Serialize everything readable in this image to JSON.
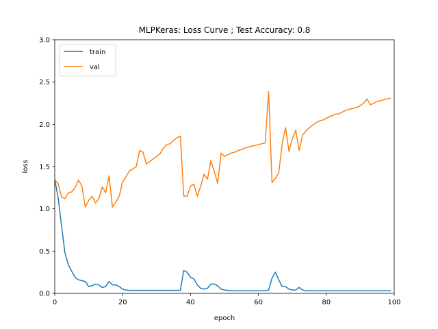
{
  "chart_data": {
    "type": "line",
    "title": "MLPKeras: Loss Curve ; Test Accuracy: 0.8",
    "xlabel": "epoch",
    "ylabel": "loss",
    "xlim": [
      0,
      100
    ],
    "ylim": [
      0.0,
      3.0
    ],
    "x_ticks": [
      "0",
      "20",
      "40",
      "60",
      "80",
      "100"
    ],
    "y_ticks": [
      "0.0",
      "0.5",
      "1.0",
      "1.5",
      "2.0",
      "2.5",
      "3.0"
    ],
    "grid": false,
    "legend_position": "top-left",
    "x": [
      0,
      1,
      2,
      3,
      4,
      5,
      6,
      7,
      8,
      9,
      10,
      11,
      12,
      13,
      14,
      15,
      16,
      17,
      18,
      19,
      20,
      21,
      22,
      23,
      24,
      25,
      26,
      27,
      28,
      29,
      30,
      31,
      32,
      33,
      34,
      35,
      36,
      37,
      38,
      39,
      40,
      41,
      42,
      43,
      44,
      45,
      46,
      47,
      48,
      49,
      50,
      51,
      52,
      53,
      54,
      55,
      56,
      57,
      58,
      59,
      60,
      61,
      62,
      63,
      64,
      65,
      66,
      67,
      68,
      69,
      70,
      71,
      72,
      73,
      74,
      75,
      76,
      77,
      78,
      79,
      80,
      81,
      82,
      83,
      84,
      85,
      86,
      87,
      88,
      89,
      90,
      91,
      92,
      93,
      94,
      95,
      96,
      97,
      98,
      99
    ],
    "series": [
      {
        "name": "train",
        "color": "#1f77b4",
        "values": [
          1.35,
          1.13,
          0.8,
          0.48,
          0.34,
          0.26,
          0.19,
          0.16,
          0.15,
          0.14,
          0.08,
          0.09,
          0.11,
          0.1,
          0.07,
          0.08,
          0.14,
          0.1,
          0.1,
          0.08,
          0.05,
          0.04,
          0.035,
          0.035,
          0.035,
          0.035,
          0.035,
          0.035,
          0.035,
          0.035,
          0.035,
          0.035,
          0.035,
          0.035,
          0.035,
          0.035,
          0.035,
          0.035,
          0.27,
          0.25,
          0.19,
          0.17,
          0.1,
          0.06,
          0.05,
          0.06,
          0.11,
          0.11,
          0.09,
          0.05,
          0.04,
          0.035,
          0.03,
          0.03,
          0.03,
          0.03,
          0.03,
          0.03,
          0.03,
          0.03,
          0.03,
          0.03,
          0.03,
          0.04,
          0.18,
          0.25,
          0.16,
          0.08,
          0.08,
          0.05,
          0.04,
          0.04,
          0.07,
          0.04,
          0.03,
          0.03,
          0.03,
          0.03,
          0.03,
          0.03,
          0.03,
          0.03,
          0.03,
          0.03,
          0.03,
          0.03,
          0.03,
          0.03,
          0.03,
          0.03,
          0.03,
          0.03,
          0.03,
          0.03,
          0.03,
          0.03,
          0.03,
          0.03,
          0.03,
          0.03
        ]
      },
      {
        "name": "val",
        "color": "#ff7f0e",
        "values": [
          1.34,
          1.3,
          1.14,
          1.12,
          1.19,
          1.2,
          1.25,
          1.34,
          1.27,
          1.02,
          1.1,
          1.15,
          1.07,
          1.12,
          1.26,
          1.19,
          1.39,
          1.02,
          1.08,
          1.15,
          1.32,
          1.38,
          1.45,
          1.47,
          1.5,
          1.69,
          1.67,
          1.53,
          1.56,
          1.59,
          1.62,
          1.65,
          1.72,
          1.76,
          1.77,
          1.81,
          1.84,
          1.86,
          1.15,
          1.15,
          1.27,
          1.29,
          1.15,
          1.27,
          1.41,
          1.35,
          1.57,
          1.44,
          1.3,
          1.66,
          1.62,
          1.64,
          1.66,
          1.67,
          1.69,
          1.7,
          1.72,
          1.73,
          1.74,
          1.75,
          1.76,
          1.77,
          1.78,
          2.39,
          1.31,
          1.36,
          1.43,
          1.77,
          1.96,
          1.68,
          1.83,
          1.93,
          1.69,
          1.87,
          1.92,
          1.96,
          1.99,
          2.02,
          2.04,
          2.05,
          2.07,
          2.09,
          2.11,
          2.12,
          2.13,
          2.15,
          2.17,
          2.18,
          2.19,
          2.2,
          2.22,
          2.25,
          2.3,
          2.23,
          2.25,
          2.27,
          2.28,
          2.29,
          2.3,
          2.31
        ]
      }
    ]
  }
}
